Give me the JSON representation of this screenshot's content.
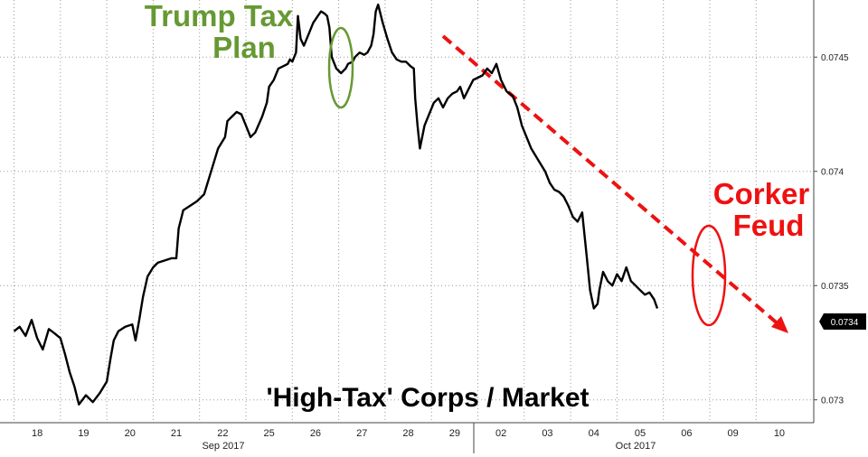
{
  "chart_data": {
    "type": "line",
    "title": "'High-Tax' Corps / Market",
    "xlabel": "",
    "ylabel": "",
    "x_tick_labels": [
      "18",
      "19",
      "20",
      "21",
      "22",
      "25",
      "26",
      "27",
      "28",
      "29",
      "02",
      "03",
      "04",
      "05",
      "06",
      "09",
      "10"
    ],
    "month_labels": [
      "Sep 2017",
      "Oct 2017"
    ],
    "y_ticks": [
      0.073,
      0.0735,
      0.074,
      0.0745
    ],
    "y_tick_labels": [
      "0.073",
      "0.0735",
      "0.074",
      "0.0745"
    ],
    "ylim": [
      0.0729,
      0.07475
    ],
    "grid": true,
    "last_value_label": "0.0734",
    "series": [
      {
        "values": [
          [
            0.0,
            0.0733
          ],
          [
            0.12,
            0.07332
          ],
          [
            0.25,
            0.07328
          ],
          [
            0.38,
            0.07335
          ],
          [
            0.5,
            0.07327
          ],
          [
            0.62,
            0.07322
          ],
          [
            0.75,
            0.07331
          ],
          [
            0.88,
            0.07329
          ],
          [
            1.0,
            0.07327
          ],
          [
            1.1,
            0.0732
          ],
          [
            1.2,
            0.07312
          ],
          [
            1.3,
            0.07306
          ],
          [
            1.4,
            0.07298
          ],
          [
            1.55,
            0.07302
          ],
          [
            1.7,
            0.07299
          ],
          [
            1.85,
            0.07303
          ],
          [
            2.0,
            0.07308
          ],
          [
            2.08,
            0.07318
          ],
          [
            2.15,
            0.07326
          ],
          [
            2.25,
            0.0733
          ],
          [
            2.4,
            0.07332
          ],
          [
            2.55,
            0.07333
          ],
          [
            2.62,
            0.07326
          ],
          [
            2.7,
            0.07335
          ],
          [
            2.78,
            0.07345
          ],
          [
            2.88,
            0.07354
          ],
          [
            3.0,
            0.07358
          ],
          [
            3.1,
            0.0736
          ],
          [
            3.25,
            0.07361
          ],
          [
            3.4,
            0.07362
          ],
          [
            3.5,
            0.07362
          ],
          [
            3.55,
            0.07375
          ],
          [
            3.65,
            0.07383
          ],
          [
            3.8,
            0.07385
          ],
          [
            3.95,
            0.07387
          ],
          [
            4.1,
            0.0739
          ],
          [
            4.25,
            0.074
          ],
          [
            4.4,
            0.0741
          ],
          [
            4.55,
            0.07415
          ],
          [
            4.6,
            0.07422
          ],
          [
            4.7,
            0.07424
          ],
          [
            4.8,
            0.07426
          ],
          [
            4.9,
            0.07425
          ],
          [
            5.0,
            0.0742
          ],
          [
            5.1,
            0.07415
          ],
          [
            5.2,
            0.07417
          ],
          [
            5.35,
            0.07424
          ],
          [
            5.45,
            0.0743
          ],
          [
            5.5,
            0.07437
          ],
          [
            5.6,
            0.0744
          ],
          [
            5.7,
            0.07445
          ],
          [
            5.8,
            0.07446
          ],
          [
            5.9,
            0.07447
          ],
          [
            5.95,
            0.07449
          ],
          [
            6.0,
            0.07448
          ],
          [
            6.08,
            0.07452
          ],
          [
            6.12,
            0.07468
          ],
          [
            6.18,
            0.07458
          ],
          [
            6.25,
            0.07455
          ],
          [
            6.35,
            0.0746
          ],
          [
            6.45,
            0.07465
          ],
          [
            6.55,
            0.07468
          ],
          [
            6.62,
            0.0747
          ],
          [
            6.7,
            0.07469
          ],
          [
            6.75,
            0.07468
          ],
          [
            6.8,
            0.07463
          ],
          [
            6.85,
            0.0745
          ],
          [
            6.95,
            0.07445
          ],
          [
            7.05,
            0.07443
          ],
          [
            7.15,
            0.07445
          ],
          [
            7.2,
            0.07447
          ],
          [
            7.3,
            0.07448
          ],
          [
            7.35,
            0.0745
          ],
          [
            7.45,
            0.07452
          ],
          [
            7.55,
            0.07451
          ],
          [
            7.62,
            0.07452
          ],
          [
            7.7,
            0.07455
          ],
          [
            7.75,
            0.0746
          ],
          [
            7.8,
            0.0747
          ],
          [
            7.85,
            0.07473
          ],
          [
            7.95,
            0.07465
          ],
          [
            8.05,
            0.07458
          ],
          [
            8.15,
            0.07452
          ],
          [
            8.25,
            0.07449
          ],
          [
            8.35,
            0.07448
          ],
          [
            8.45,
            0.07448
          ],
          [
            8.55,
            0.07446
          ],
          [
            8.62,
            0.07445
          ],
          [
            8.65,
            0.07432
          ],
          [
            8.7,
            0.0742
          ],
          [
            8.75,
            0.0741
          ],
          [
            8.85,
            0.0742
          ],
          [
            8.95,
            0.07425
          ],
          [
            9.05,
            0.0743
          ],
          [
            9.15,
            0.07432
          ],
          [
            9.25,
            0.07428
          ],
          [
            9.35,
            0.07432
          ],
          [
            9.45,
            0.07434
          ],
          [
            9.55,
            0.07435
          ],
          [
            9.62,
            0.07437
          ],
          [
            9.7,
            0.07432
          ],
          [
            9.8,
            0.07436
          ],
          [
            9.9,
            0.0744
          ],
          [
            10.0,
            0.07441
          ],
          [
            10.1,
            0.07442
          ],
          [
            10.2,
            0.07445
          ],
          [
            10.3,
            0.07443
          ],
          [
            10.4,
            0.07447
          ],
          [
            10.5,
            0.0744
          ],
          [
            10.62,
            0.07435
          ],
          [
            10.75,
            0.07433
          ],
          [
            10.85,
            0.07428
          ],
          [
            10.95,
            0.0742
          ],
          [
            11.05,
            0.07415
          ],
          [
            11.15,
            0.0741
          ],
          [
            11.3,
            0.07405
          ],
          [
            11.45,
            0.074
          ],
          [
            11.55,
            0.07395
          ],
          [
            11.65,
            0.07392
          ],
          [
            11.75,
            0.07391
          ],
          [
            11.85,
            0.07389
          ],
          [
            11.95,
            0.07385
          ],
          [
            12.05,
            0.0738
          ],
          [
            12.15,
            0.07378
          ],
          [
            12.25,
            0.07382
          ],
          [
            12.35,
            0.07362
          ],
          [
            12.42,
            0.07348
          ],
          [
            12.5,
            0.0734
          ],
          [
            12.58,
            0.07342
          ],
          [
            12.62,
            0.07348
          ],
          [
            12.7,
            0.07356
          ],
          [
            12.8,
            0.07352
          ],
          [
            12.9,
            0.0735
          ],
          [
            13.0,
            0.07355
          ],
          [
            13.1,
            0.07352
          ],
          [
            13.2,
            0.07358
          ],
          [
            13.3,
            0.07352
          ],
          [
            13.4,
            0.0735
          ],
          [
            13.5,
            0.07348
          ],
          [
            13.6,
            0.07346
          ],
          [
            13.7,
            0.07347
          ],
          [
            13.8,
            0.07344
          ],
          [
            13.87,
            0.0734
          ]
        ]
      }
    ],
    "annotations": [
      {
        "text_lines": [
          "Trump Tax",
          "Plan"
        ],
        "color": "#669933"
      },
      {
        "text_lines": [
          "Corker",
          "Feud"
        ],
        "color": "#ee1111"
      }
    ],
    "colors": {
      "line": "#000000",
      "trend_arrow": "#ee1111",
      "green": "#669933",
      "red": "#ee1111",
      "grid": "#999999",
      "last_value_bg": "#000000"
    }
  }
}
